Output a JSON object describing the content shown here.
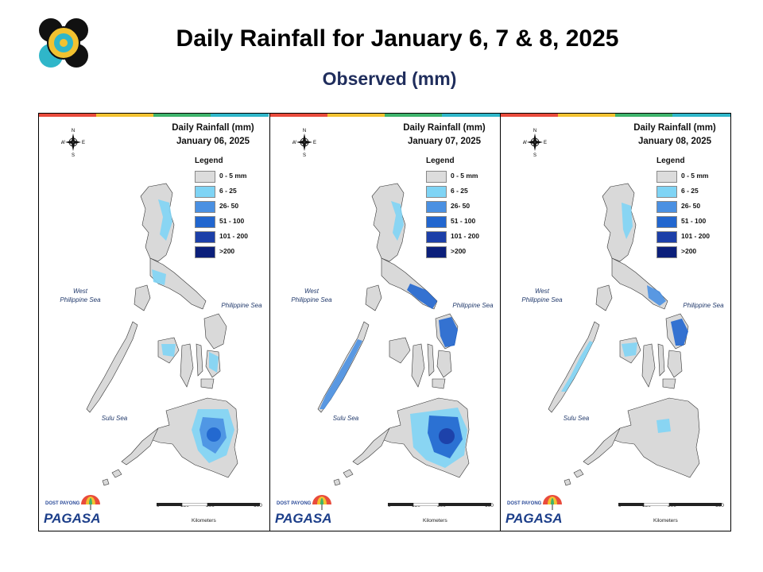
{
  "header": {
    "title": "Daily Rainfall for January 6, 7 & 8, 2025",
    "subtitle": "Observed (mm)"
  },
  "legend": {
    "title": "Legend",
    "items": [
      {
        "label": "0 - 5 mm",
        "color": "#dcdcdc"
      },
      {
        "label": "6 - 25",
        "color": "#7fd4f5"
      },
      {
        "label": "26- 50",
        "color": "#4a90e2"
      },
      {
        "label": "51 - 100",
        "color": "#2166cf"
      },
      {
        "label": "101 - 200",
        "color": "#1c3fa8"
      },
      {
        "label": ">200",
        "color": "#0b1f7a"
      }
    ]
  },
  "seas": {
    "west": "West\nPhilippine Sea",
    "east": "Philippine Sea",
    "sulu": "Sulu Sea"
  },
  "compass": {
    "n": "N",
    "s": "S",
    "e": "E",
    "w": "W"
  },
  "scale": {
    "ticks": [
      "0",
      "150",
      "300",
      "600"
    ],
    "unit": "Kilometers"
  },
  "brand": {
    "name": "PAGASA",
    "top": "DOST PAYONG"
  },
  "panels": [
    {
      "title_line1": "Daily Rainfall (mm)",
      "title_line2": "January 06, 2025",
      "rain_areas": [
        {
          "region": "northeast-luzon",
          "class": "6 - 25"
        },
        {
          "region": "southern-luzon",
          "class": "6 - 25"
        },
        {
          "region": "panay",
          "class": "6 - 25"
        },
        {
          "region": "leyte",
          "class": "6 - 25"
        },
        {
          "region": "central-mindanao",
          "class": "6 - 25"
        },
        {
          "region": "central-mindanao-core",
          "class": "26- 50"
        },
        {
          "region": "central-mindanao-peak",
          "class": "51 - 100"
        }
      ]
    },
    {
      "title_line1": "Daily Rainfall (mm)",
      "title_line2": "January 07, 2025",
      "rain_areas": [
        {
          "region": "northeast-luzon",
          "class": "6 - 25"
        },
        {
          "region": "bicol",
          "class": "51 - 100"
        },
        {
          "region": "samar",
          "class": "51 - 100"
        },
        {
          "region": "palawan",
          "class": "26- 50"
        },
        {
          "region": "central-mindanao",
          "class": "6 - 25"
        },
        {
          "region": "central-mindanao-core",
          "class": "51 - 100"
        },
        {
          "region": "central-mindanao-peak",
          "class": "101 - 200"
        }
      ]
    },
    {
      "title_line1": "Daily Rainfall (mm)",
      "title_line2": "January 08, 2025",
      "rain_areas": [
        {
          "region": "northeast-luzon",
          "class": "6 - 25"
        },
        {
          "region": "bicol",
          "class": "26- 50"
        },
        {
          "region": "samar",
          "class": "51 - 100"
        },
        {
          "region": "palawan",
          "class": "6 - 25"
        },
        {
          "region": "panay",
          "class": "6 - 25"
        },
        {
          "region": "central-mindanao",
          "class": "6 - 25"
        }
      ]
    }
  ]
}
